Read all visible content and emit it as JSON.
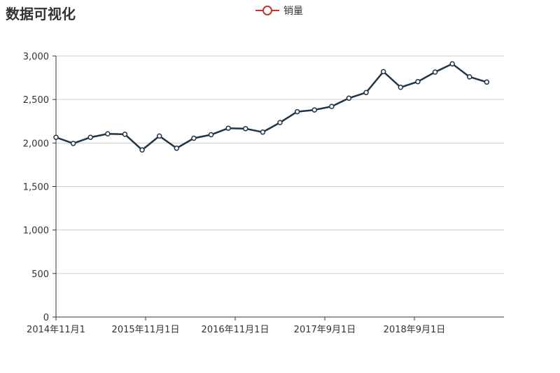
{
  "title": "数据可视化",
  "legend": {
    "label": "销量"
  },
  "colors": {
    "line": "#1f3447",
    "marker_stroke": "#1f3447",
    "marker_fill": "#ffffff",
    "legend_icon": "#c23531",
    "grid": "#cccccc",
    "axis": "#333333"
  },
  "chart_data": {
    "type": "line",
    "title": "数据可视化",
    "x_tick_labels": [
      "2014年11月1",
      "2015年11月1日",
      "2016年11月1日",
      "2017年9月1日",
      "2018年9月1日"
    ],
    "y_tick_labels": [
      "0",
      "500",
      "1,000",
      "1,500",
      "2,000",
      "2,500",
      "3,000"
    ],
    "ylim": [
      0,
      3000
    ],
    "grid": true,
    "legend_position": "top-center",
    "series": [
      {
        "name": "销量",
        "values": [
          2065,
          1995,
          2065,
          2105,
          2100,
          1920,
          2080,
          1940,
          2055,
          2095,
          2170,
          2165,
          2125,
          2235,
          2360,
          2380,
          2420,
          2515,
          2580,
          2820,
          2640,
          2705,
          2815,
          2910,
          2760,
          2700
        ]
      }
    ]
  }
}
